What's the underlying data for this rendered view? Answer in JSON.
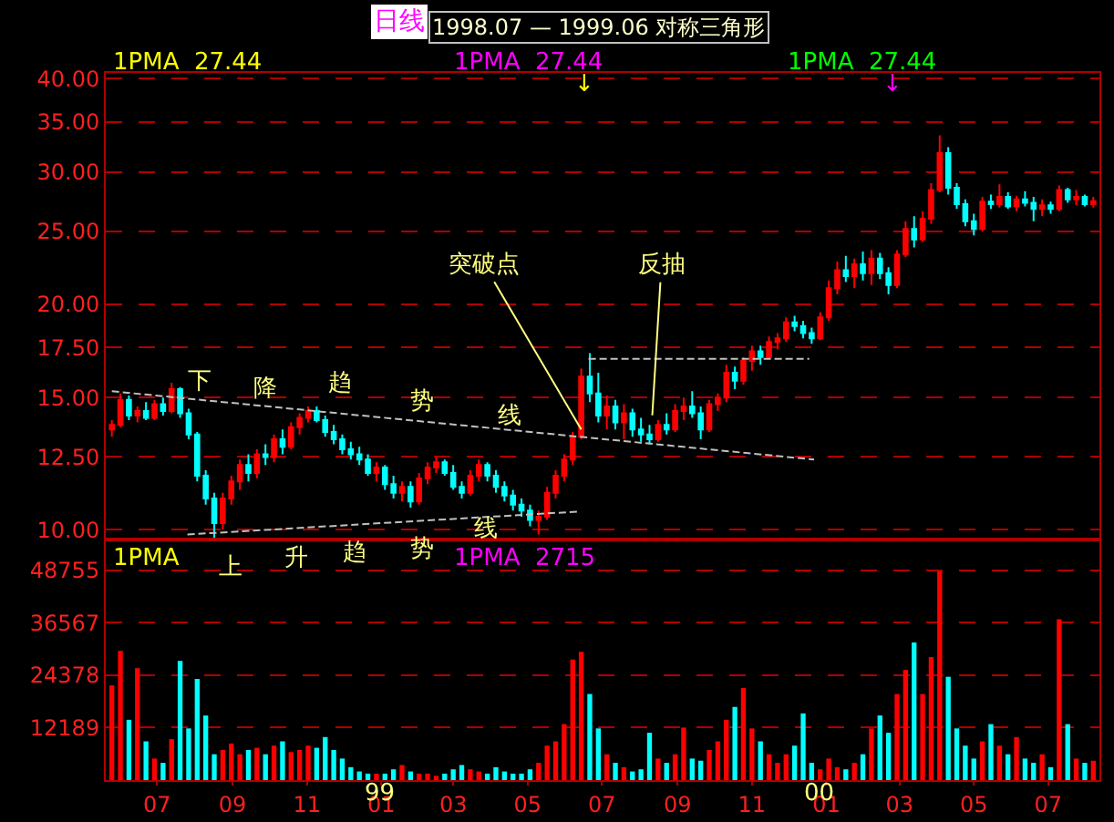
{
  "chart_data": [
    {
      "type": "candlestick",
      "title": "1998.07 — 1999.06 对称三角形",
      "subtitle": "日线",
      "log": true,
      "grid": "y",
      "tick_labels": "y",
      "xlim": [
        "1998-05-20",
        "2000-08-12"
      ],
      "ylim": [
        9.7,
        40.7
      ],
      "yticks": [
        {
          "value": 10,
          "label": "10.00"
        },
        {
          "value": 12.5,
          "label": "12.50"
        },
        {
          "value": 15,
          "label": "15.00"
        },
        {
          "value": 17.5,
          "label": "17.50"
        },
        {
          "value": 20,
          "label": "20.00"
        },
        {
          "value": 25,
          "label": "25.00"
        },
        {
          "value": 30,
          "label": "30.00"
        },
        {
          "value": 35,
          "label": "35.00"
        },
        {
          "value": 40,
          "label": "40.00"
        }
      ],
      "x": [
        "1998-05-25",
        "1998-06-01",
        "1998-06-08",
        "1998-06-15",
        "1998-06-22",
        "1998-06-29",
        "1998-07-06",
        "1998-07-13",
        "1998-07-20",
        "1998-07-27",
        "1998-08-03",
        "1998-08-10",
        "1998-08-17",
        "1998-08-24",
        "1998-08-31",
        "1998-09-07",
        "1998-09-14",
        "1998-09-21",
        "1998-09-28",
        "1998-10-05",
        "1998-10-12",
        "1998-10-19",
        "1998-10-26",
        "1998-11-02",
        "1998-11-09",
        "1998-11-16",
        "1998-11-23",
        "1998-11-30",
        "1998-12-07",
        "1998-12-14",
        "1998-12-21",
        "1998-12-28",
        "1999-01-04",
        "1999-01-11",
        "1999-01-18",
        "1999-01-25",
        "1999-02-01",
        "1999-02-08",
        "1999-02-15",
        "1999-02-22",
        "1999-03-01",
        "1999-03-08",
        "1999-03-15",
        "1999-03-22",
        "1999-03-29",
        "1999-04-05",
        "1999-04-12",
        "1999-04-19",
        "1999-04-26",
        "1999-05-03",
        "1999-05-10",
        "1999-05-17",
        "1999-05-24",
        "1999-05-31",
        "1999-06-07",
        "1999-06-14",
        "1999-06-21",
        "1999-06-28",
        "1999-07-05",
        "1999-07-12",
        "1999-07-19",
        "1999-07-26",
        "1999-08-02",
        "1999-08-09",
        "1999-08-16",
        "1999-08-23",
        "1999-08-30",
        "1999-09-06",
        "1999-09-13",
        "1999-09-20",
        "1999-09-27",
        "1999-10-04",
        "1999-10-11",
        "1999-10-18",
        "1999-10-25",
        "1999-11-01",
        "1999-11-08",
        "1999-11-15",
        "1999-11-22",
        "1999-11-29",
        "1999-12-06",
        "1999-12-13",
        "1999-12-20",
        "1999-12-27",
        "2000-01-03",
        "2000-01-10",
        "2000-01-17",
        "2000-01-24",
        "2000-01-31",
        "2000-02-07",
        "2000-02-14",
        "2000-02-21",
        "2000-02-28",
        "2000-03-06",
        "2000-03-13",
        "2000-03-20",
        "2000-03-27",
        "2000-04-03",
        "2000-04-10",
        "2000-04-17",
        "2000-04-24",
        "2000-05-01",
        "2000-05-08",
        "2000-05-15",
        "2000-05-22",
        "2000-05-29",
        "2000-06-05",
        "2000-06-12",
        "2000-06-19",
        "2000-06-26",
        "2000-07-03",
        "2000-07-10",
        "2000-07-17",
        "2000-07-24",
        "2000-07-31",
        "2000-08-07"
      ],
      "ohlc": [
        [
          13.6,
          14.0,
          13.3,
          13.8
        ],
        [
          13.8,
          15.2,
          13.7,
          14.9
        ],
        [
          14.9,
          15.1,
          14.0,
          14.2
        ],
        [
          14.2,
          14.6,
          13.9,
          14.4
        ],
        [
          14.4,
          14.8,
          14.0,
          14.1
        ],
        [
          14.1,
          14.9,
          14.0,
          14.7
        ],
        [
          14.7,
          15.0,
          14.2,
          14.4
        ],
        [
          14.4,
          15.7,
          14.3,
          15.4
        ],
        [
          15.4,
          15.5,
          14.1,
          14.3
        ],
        [
          14.3,
          14.5,
          13.2,
          13.4
        ],
        [
          13.4,
          13.5,
          11.6,
          11.8
        ],
        [
          11.8,
          12.0,
          10.8,
          11.0
        ],
        [
          11.0,
          11.2,
          9.75,
          10.2
        ],
        [
          10.2,
          11.2,
          10.0,
          11.0
        ],
        [
          11.0,
          11.8,
          10.8,
          11.6
        ],
        [
          11.6,
          12.4,
          11.3,
          12.2
        ],
        [
          12.2,
          12.6,
          11.6,
          11.9
        ],
        [
          11.9,
          12.8,
          11.7,
          12.6
        ],
        [
          12.6,
          13.0,
          12.2,
          12.5
        ],
        [
          12.5,
          13.4,
          12.3,
          13.2
        ],
        [
          13.2,
          13.6,
          12.6,
          12.9
        ],
        [
          12.9,
          13.9,
          12.8,
          13.7
        ],
        [
          13.7,
          14.3,
          13.4,
          14.1
        ],
        [
          14.1,
          14.6,
          13.9,
          14.4
        ],
        [
          14.4,
          14.6,
          13.9,
          14.0
        ],
        [
          14.0,
          14.2,
          13.3,
          13.5
        ],
        [
          13.5,
          13.8,
          13.0,
          13.2
        ],
        [
          13.2,
          13.4,
          12.6,
          12.8
        ],
        [
          12.8,
          13.1,
          12.4,
          12.6
        ],
        [
          12.6,
          12.9,
          12.2,
          12.4
        ],
        [
          12.4,
          12.6,
          11.8,
          11.9
        ],
        [
          11.9,
          12.3,
          11.6,
          12.1
        ],
        [
          12.1,
          12.2,
          11.3,
          11.5
        ],
        [
          11.5,
          11.8,
          11.0,
          11.2
        ],
        [
          11.2,
          11.6,
          10.9,
          11.4
        ],
        [
          11.4,
          11.6,
          10.7,
          10.9
        ],
        [
          10.9,
          11.9,
          10.8,
          11.7
        ],
        [
          11.7,
          12.3,
          11.5,
          12.1
        ],
        [
          12.1,
          12.5,
          11.9,
          12.3
        ],
        [
          12.3,
          12.4,
          11.8,
          11.9
        ],
        [
          11.9,
          12.2,
          11.3,
          11.4
        ],
        [
          11.4,
          11.6,
          11.0,
          11.2
        ],
        [
          11.2,
          12.0,
          11.1,
          11.8
        ],
        [
          11.8,
          12.4,
          11.6,
          12.2
        ],
        [
          12.2,
          12.3,
          11.6,
          11.8
        ],
        [
          11.8,
          12.0,
          11.2,
          11.4
        ],
        [
          11.4,
          11.6,
          10.9,
          11.1
        ],
        [
          11.1,
          11.3,
          10.6,
          10.8
        ],
        [
          10.8,
          11.0,
          10.4,
          10.6
        ],
        [
          10.6,
          10.8,
          10.1,
          10.3
        ],
        [
          10.3,
          10.6,
          9.85,
          10.4
        ],
        [
          10.4,
          11.4,
          10.3,
          11.2
        ],
        [
          11.2,
          12.0,
          11.0,
          11.8
        ],
        [
          11.8,
          12.6,
          11.6,
          12.4
        ],
        [
          12.4,
          13.5,
          12.2,
          13.3
        ],
        [
          13.3,
          16.4,
          13.2,
          16.0
        ],
        [
          16.0,
          17.2,
          14.8,
          15.2
        ],
        [
          15.2,
          16.2,
          13.9,
          14.2
        ],
        [
          14.2,
          15.1,
          13.6,
          14.6
        ],
        [
          14.6,
          14.9,
          13.6,
          13.9
        ],
        [
          13.9,
          14.7,
          13.2,
          14.3
        ],
        [
          14.3,
          14.5,
          13.3,
          13.6
        ],
        [
          13.6,
          14.1,
          13.1,
          13.4
        ],
        [
          13.4,
          13.8,
          13.0,
          13.2
        ],
        [
          13.2,
          14.0,
          13.1,
          13.8
        ],
        [
          13.8,
          14.3,
          13.4,
          13.6
        ],
        [
          13.6,
          14.7,
          13.5,
          14.4
        ],
        [
          14.4,
          15.0,
          14.0,
          14.6
        ],
        [
          14.6,
          15.3,
          14.1,
          14.3
        ],
        [
          14.3,
          14.6,
          13.2,
          13.6
        ],
        [
          13.6,
          14.9,
          13.5,
          14.7
        ],
        [
          14.7,
          15.2,
          14.4,
          15.0
        ],
        [
          15.0,
          16.6,
          14.8,
          16.2
        ],
        [
          16.2,
          16.5,
          15.4,
          15.8
        ],
        [
          15.8,
          17.0,
          15.6,
          16.8
        ],
        [
          16.8,
          17.6,
          16.3,
          17.3
        ],
        [
          17.3,
          17.6,
          16.6,
          17.0
        ],
        [
          17.0,
          18.1,
          16.9,
          17.8
        ],
        [
          17.8,
          18.3,
          17.4,
          18.0
        ],
        [
          18.0,
          19.2,
          17.8,
          18.9
        ],
        [
          18.9,
          19.3,
          18.4,
          18.7
        ],
        [
          18.7,
          19.0,
          18.0,
          18.3
        ],
        [
          18.3,
          18.6,
          17.7,
          18.0
        ],
        [
          18.0,
          19.5,
          17.9,
          19.2
        ],
        [
          19.2,
          21.5,
          19.0,
          21.0
        ],
        [
          21.0,
          22.8,
          20.6,
          22.2
        ],
        [
          22.2,
          23.2,
          21.4,
          21.8
        ],
        [
          21.8,
          23.0,
          21.0,
          22.6
        ],
        [
          22.6,
          23.5,
          21.5,
          22.0
        ],
        [
          22.0,
          23.6,
          21.2,
          23.0
        ],
        [
          23.0,
          23.4,
          21.6,
          22.0
        ],
        [
          22.0,
          22.4,
          20.6,
          21.2
        ],
        [
          21.2,
          23.6,
          21.0,
          23.3
        ],
        [
          23.3,
          25.8,
          23.1,
          25.2
        ],
        [
          25.2,
          26.2,
          23.8,
          24.4
        ],
        [
          24.4,
          26.6,
          24.2,
          26.0
        ],
        [
          26.0,
          29.0,
          25.6,
          28.4
        ],
        [
          28.4,
          33.6,
          28.2,
          31.8
        ],
        [
          31.8,
          32.4,
          28.0,
          28.6
        ],
        [
          28.6,
          29.0,
          26.8,
          27.2
        ],
        [
          27.2,
          27.6,
          25.4,
          25.8
        ],
        [
          25.8,
          26.4,
          24.7,
          25.2
        ],
        [
          25.2,
          27.8,
          25.0,
          27.4
        ],
        [
          27.4,
          28.0,
          26.8,
          27.2
        ],
        [
          27.2,
          28.9,
          26.9,
          27.8
        ],
        [
          27.8,
          28.2,
          26.8,
          27.0
        ],
        [
          27.0,
          27.9,
          26.6,
          27.6
        ],
        [
          27.6,
          28.3,
          27.0,
          27.3
        ],
        [
          27.3,
          27.8,
          25.8,
          26.8
        ],
        [
          26.8,
          27.6,
          26.2,
          27.1
        ],
        [
          27.1,
          27.4,
          26.4,
          26.8
        ],
        [
          26.8,
          28.8,
          26.6,
          28.4
        ],
        [
          28.4,
          28.6,
          27.3,
          27.6
        ],
        [
          27.6,
          28.4,
          27.1,
          27.8
        ],
        [
          27.8,
          28.0,
          27.0,
          27.2
        ],
        [
          27.2,
          27.8,
          26.9,
          27.44
        ]
      ],
      "colors": [
        "#ff0000",
        "#ff0000",
        "#00ffff",
        "#ff0000",
        "#00ffff",
        "#ff0000",
        "#00ffff",
        "#ff0000",
        "#00ffff",
        "#00ffff",
        "#00ffff",
        "#00ffff",
        "#00ffff",
        "#ff0000",
        "#ff0000",
        "#ff0000",
        "#00ffff",
        "#ff0000",
        "#00ffff",
        "#ff0000",
        "#00ffff",
        "#ff0000",
        "#ff0000",
        "#ff0000",
        "#00ffff",
        "#00ffff",
        "#00ffff",
        "#00ffff",
        "#00ffff",
        "#00ffff",
        "#00ffff",
        "#ff0000",
        "#00ffff",
        "#00ffff",
        "#ff0000",
        "#00ffff",
        "#ff0000",
        "#ff0000",
        "#ff0000",
        "#00ffff",
        "#00ffff",
        "#00ffff",
        "#ff0000",
        "#ff0000",
        "#00ffff",
        "#00ffff",
        "#00ffff",
        "#00ffff",
        "#00ffff",
        "#00ffff",
        "#ff0000",
        "#ff0000",
        "#ff0000",
        "#ff0000",
        "#ff0000",
        "#ff0000",
        "#00ffff",
        "#00ffff",
        "#ff0000",
        "#00ffff",
        "#ff0000",
        "#00ffff",
        "#00ffff",
        "#00ffff",
        "#ff0000",
        "#00ffff",
        "#ff0000",
        "#ff0000",
        "#00ffff",
        "#00ffff",
        "#ff0000",
        "#ff0000",
        "#ff0000",
        "#00ffff",
        "#ff0000",
        "#ff0000",
        "#00ffff",
        "#ff0000",
        "#ff0000",
        "#ff0000",
        "#00ffff",
        "#00ffff",
        "#00ffff",
        "#ff0000",
        "#ff0000",
        "#ff0000",
        "#00ffff",
        "#ff0000",
        "#00ffff",
        "#ff0000",
        "#00ffff",
        "#00ffff",
        "#ff0000",
        "#ff0000",
        "#00ffff",
        "#ff0000",
        "#ff0000",
        "#ff0000",
        "#00ffff",
        "#00ffff",
        "#00ffff",
        "#00ffff",
        "#ff0000",
        "#00ffff",
        "#ff0000",
        "#00ffff",
        "#ff0000",
        "#00ffff",
        "#00ffff",
        "#ff0000",
        "#00ffff",
        "#ff0000",
        "#00ffff",
        "#ff0000",
        "#00ffff",
        "#ff0000"
      ],
      "series": [
        {
          "type": "line",
          "x": [
            "1998-05-25",
            "1999-12-22"
          ],
          "values": [
            15.3,
            12.4
          ],
          "color": "#c0c0c0",
          "line_style": "dashed"
        },
        {
          "type": "line",
          "x": [
            "1998-07-26",
            "1999-06-12"
          ],
          "values": [
            9.85,
            10.57
          ],
          "color": "#c0c0c0",
          "line_style": "dashed"
        },
        {
          "type": "line",
          "x": [
            "1999-06-20",
            "1999-12-18"
          ],
          "values": [
            16.9,
            16.9
          ],
          "color": "#c0c0c0",
          "line_style": "dashed"
        }
      ],
      "annotations": [
        "1PMA  27.44",
        "1PMA  27.44",
        "1PMA  27.44",
        "↓",
        "↓",
        "下",
        "降",
        "趋",
        "势",
        "线",
        {
          "text": "突破点",
          "x": "1999-06-14",
          "y": 13.6
        },
        "反抽"
      ]
    },
    {
      "type": "bar",
      "grid": "y",
      "xlim": [
        "1998-05-20",
        "2000-08-12"
      ],
      "ylim": [
        0,
        55900
      ],
      "yticks": [
        12189,
        24378,
        36567,
        48755
      ],
      "xticks": [
        {
          "value": "1998-07-01",
          "label": "07"
        },
        {
          "value": "1998-09-01",
          "label": "09"
        },
        {
          "value": "1998-11-01",
          "label": "11"
        },
        {
          "value": "1999-01-01",
          "label": "01"
        },
        {
          "value": "1999-03-01",
          "label": "03"
        },
        {
          "value": "1999-05-01",
          "label": "05"
        },
        {
          "value": "1999-07-01",
          "label": "07"
        },
        {
          "value": "1999-09-01",
          "label": "09"
        },
        {
          "value": "1999-11-01",
          "label": "11"
        },
        {
          "value": "2000-01-01",
          "label": "01"
        },
        {
          "value": "2000-03-01",
          "label": "03"
        },
        {
          "value": "2000-05-01",
          "label": "05"
        },
        {
          "value": "2000-07-01",
          "label": "07"
        }
      ],
      "x": [
        "1998-05-25",
        "1998-06-01",
        "1998-06-08",
        "1998-06-15",
        "1998-06-22",
        "1998-06-29",
        "1998-07-06",
        "1998-07-13",
        "1998-07-20",
        "1998-07-27",
        "1998-08-03",
        "1998-08-10",
        "1998-08-17",
        "1998-08-24",
        "1998-08-31",
        "1998-09-07",
        "1998-09-14",
        "1998-09-21",
        "1998-09-28",
        "1998-10-05",
        "1998-10-12",
        "1998-10-19",
        "1998-10-26",
        "1998-11-02",
        "1998-11-09",
        "1998-11-16",
        "1998-11-23",
        "1998-11-30",
        "1998-12-07",
        "1998-12-14",
        "1998-12-21",
        "1998-12-28",
        "1999-01-04",
        "1999-01-11",
        "1999-01-18",
        "1999-01-25",
        "1999-02-01",
        "1999-02-08",
        "1999-02-15",
        "1999-02-22",
        "1999-03-01",
        "1999-03-08",
        "1999-03-15",
        "1999-03-22",
        "1999-03-29",
        "1999-04-05",
        "1999-04-12",
        "1999-04-19",
        "1999-04-26",
        "1999-05-03",
        "1999-05-10",
        "1999-05-17",
        "1999-05-24",
        "1999-05-31",
        "1999-06-07",
        "1999-06-14",
        "1999-06-21",
        "1999-06-28",
        "1999-07-05",
        "1999-07-12",
        "1999-07-19",
        "1999-07-26",
        "1999-08-02",
        "1999-08-09",
        "1999-08-16",
        "1999-08-23",
        "1999-08-30",
        "1999-09-06",
        "1999-09-13",
        "1999-09-20",
        "1999-09-27",
        "1999-10-04",
        "1999-10-11",
        "1999-10-18",
        "1999-10-25",
        "1999-11-01",
        "1999-11-08",
        "1999-11-15",
        "1999-11-22",
        "1999-11-29",
        "1999-12-06",
        "1999-12-13",
        "1999-12-20",
        "1999-12-27",
        "2000-01-03",
        "2000-01-10",
        "2000-01-17",
        "2000-01-24",
        "2000-01-31",
        "2000-02-07",
        "2000-02-14",
        "2000-02-21",
        "2000-02-28",
        "2000-03-06",
        "2000-03-13",
        "2000-03-20",
        "2000-03-27",
        "2000-04-03",
        "2000-04-10",
        "2000-04-17",
        "2000-04-24",
        "2000-05-01",
        "2000-05-08",
        "2000-05-15",
        "2000-05-22",
        "2000-05-29",
        "2000-06-05",
        "2000-06-12",
        "2000-06-19",
        "2000-06-26",
        "2000-07-03",
        "2000-07-10",
        "2000-07-17",
        "2000-07-24",
        "2000-07-31",
        "2000-08-07"
      ],
      "values": [
        22000,
        30000,
        14000,
        26000,
        9000,
        5000,
        4000,
        9500,
        27700,
        12000,
        23500,
        15000,
        6000,
        7000,
        8500,
        6000,
        7000,
        7500,
        6000,
        8000,
        9000,
        6500,
        7000,
        8000,
        7500,
        10000,
        7000,
        5000,
        3000,
        2000,
        1500,
        1500,
        1500,
        2500,
        3500,
        2000,
        1500,
        1500,
        1000,
        1500,
        2500,
        3500,
        2500,
        2000,
        1500,
        3000,
        2000,
        1500,
        1500,
        2500,
        4000,
        8000,
        9000,
        13000,
        28000,
        29800,
        20000,
        12000,
        6000,
        4000,
        3000,
        2000,
        2500,
        11000,
        5000,
        4000,
        6000,
        12200,
        5000,
        4500,
        7000,
        9000,
        14000,
        17000,
        21400,
        12000,
        9000,
        6000,
        4000,
        6000,
        8000,
        15500,
        4000,
        2500,
        5000,
        3000,
        2500,
        4000,
        6000,
        12000,
        15000,
        11000,
        20000,
        25600,
        32000,
        20000,
        28600,
        48500,
        24000,
        12000,
        8000,
        5000,
        9000,
        13000,
        8000,
        6000,
        10000,
        5000,
        4000,
        6000,
        3000,
        37400,
        13000,
        5000,
        4000,
        4500
      ],
      "colors": [
        "#ff0000",
        "#ff0000",
        "#00ffff",
        "#ff0000",
        "#00ffff",
        "#ff0000",
        "#00ffff",
        "#ff0000",
        "#00ffff",
        "#00ffff",
        "#00ffff",
        "#00ffff",
        "#00ffff",
        "#ff0000",
        "#ff0000",
        "#ff0000",
        "#00ffff",
        "#ff0000",
        "#00ffff",
        "#ff0000",
        "#00ffff",
        "#ff0000",
        "#ff0000",
        "#ff0000",
        "#00ffff",
        "#00ffff",
        "#00ffff",
        "#00ffff",
        "#00ffff",
        "#00ffff",
        "#00ffff",
        "#ff0000",
        "#00ffff",
        "#00ffff",
        "#ff0000",
        "#00ffff",
        "#ff0000",
        "#ff0000",
        "#ff0000",
        "#00ffff",
        "#00ffff",
        "#00ffff",
        "#ff0000",
        "#ff0000",
        "#00ffff",
        "#00ffff",
        "#00ffff",
        "#00ffff",
        "#00ffff",
        "#00ffff",
        "#ff0000",
        "#ff0000",
        "#ff0000",
        "#ff0000",
        "#ff0000",
        "#ff0000",
        "#00ffff",
        "#00ffff",
        "#ff0000",
        "#00ffff",
        "#ff0000",
        "#00ffff",
        "#00ffff",
        "#00ffff",
        "#ff0000",
        "#00ffff",
        "#ff0000",
        "#ff0000",
        "#00ffff",
        "#00ffff",
        "#ff0000",
        "#ff0000",
        "#ff0000",
        "#00ffff",
        "#ff0000",
        "#ff0000",
        "#00ffff",
        "#ff0000",
        "#ff0000",
        "#ff0000",
        "#00ffff",
        "#00ffff",
        "#00ffff",
        "#ff0000",
        "#ff0000",
        "#ff0000",
        "#00ffff",
        "#ff0000",
        "#00ffff",
        "#ff0000",
        "#00ffff",
        "#00ffff",
        "#ff0000",
        "#ff0000",
        "#00ffff",
        "#ff0000",
        "#ff0000",
        "#ff0000",
        "#00ffff",
        "#00ffff",
        "#00ffff",
        "#00ffff",
        "#ff0000",
        "#00ffff",
        "#ff0000",
        "#00ffff",
        "#ff0000",
        "#00ffff",
        "#00ffff",
        "#ff0000",
        "#00ffff",
        "#ff0000",
        "#00ffff",
        "#ff0000",
        "#00ffff",
        "#ff0000"
      ],
      "annotations": [
        "1PMA",
        "1PMA  2715",
        "上",
        "升",
        "趋",
        "势",
        "线",
        "99",
        "00"
      ]
    }
  ]
}
